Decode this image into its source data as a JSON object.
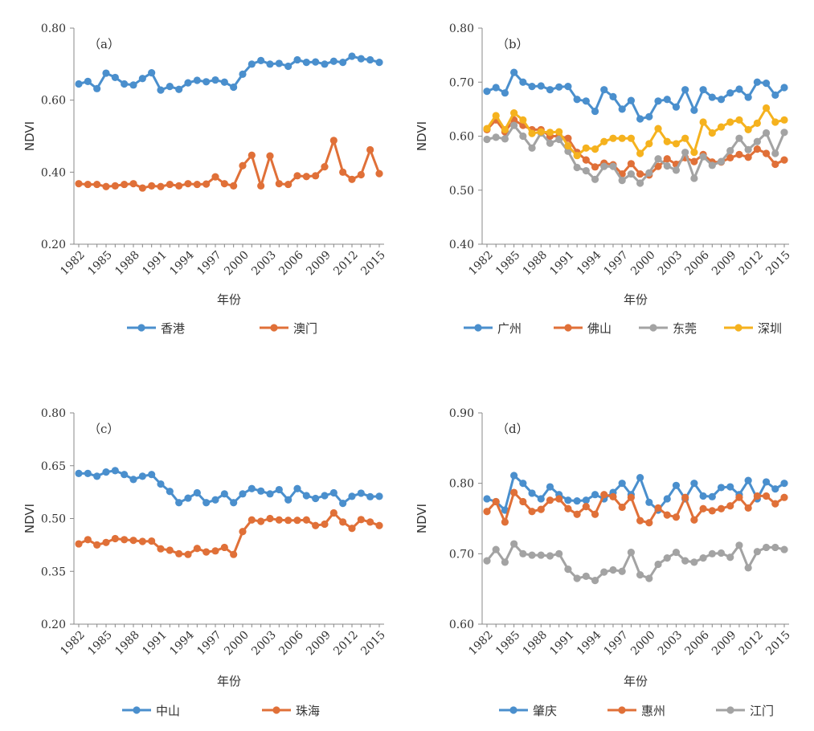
{
  "colors": {
    "blue": "#4a8fcd",
    "orange": "#e07038",
    "gray": "#a3a3a3",
    "yellow": "#f5b21e",
    "axis": "#888888"
  },
  "chart_data": [
    {
      "id": "a",
      "type": "line",
      "label": "（a）",
      "xlabel": "年份",
      "ylabel": "NDVI",
      "ylim": [
        0.2,
        0.8
      ],
      "yticks": [
        0.2,
        0.4,
        0.6,
        0.8
      ],
      "ytick_labels": [
        "0.20",
        "0.40",
        "0.60",
        "0.80"
      ],
      "xticks": [
        1982,
        1985,
        1988,
        1991,
        1994,
        1997,
        2000,
        2003,
        2006,
        2009,
        2012,
        2015
      ],
      "x": [
        1982,
        1983,
        1984,
        1985,
        1986,
        1987,
        1988,
        1989,
        1990,
        1991,
        1992,
        1993,
        1994,
        1995,
        1996,
        1997,
        1998,
        1999,
        2000,
        2001,
        2002,
        2003,
        2004,
        2005,
        2006,
        2007,
        2008,
        2009,
        2010,
        2011,
        2012,
        2013,
        2014,
        2015
      ],
      "series": [
        {
          "name": "香港",
          "color": "#4a8fcd",
          "values": [
            0.645,
            0.652,
            0.632,
            0.675,
            0.663,
            0.645,
            0.642,
            0.66,
            0.676,
            0.628,
            0.638,
            0.63,
            0.648,
            0.655,
            0.651,
            0.656,
            0.65,
            0.636,
            0.672,
            0.7,
            0.71,
            0.7,
            0.702,
            0.694,
            0.712,
            0.705,
            0.706,
            0.7,
            0.708,
            0.705,
            0.722,
            0.715,
            0.712,
            0.705
          ]
        },
        {
          "name": "澳门",
          "color": "#e07038",
          "values": [
            0.368,
            0.366,
            0.366,
            0.36,
            0.362,
            0.366,
            0.368,
            0.356,
            0.362,
            0.36,
            0.366,
            0.362,
            0.368,
            0.366,
            0.367,
            0.387,
            0.368,
            0.362,
            0.418,
            0.447,
            0.362,
            0.445,
            0.368,
            0.366,
            0.39,
            0.388,
            0.39,
            0.415,
            0.488,
            0.4,
            0.38,
            0.393,
            0.462,
            0.396
          ]
        }
      ]
    },
    {
      "id": "b",
      "type": "line",
      "label": "（b）",
      "xlabel": "年份",
      "ylabel": "NDVI",
      "ylim": [
        0.4,
        0.8
      ],
      "yticks": [
        0.4,
        0.5,
        0.6,
        0.7,
        0.8
      ],
      "ytick_labels": [
        "0.40",
        "0.50",
        "0.60",
        "0.70",
        "0.80"
      ],
      "xticks": [
        1982,
        1985,
        1988,
        1991,
        1994,
        1997,
        2000,
        2003,
        2006,
        2009,
        2012,
        2015
      ],
      "x": [
        1982,
        1983,
        1984,
        1985,
        1986,
        1987,
        1988,
        1989,
        1990,
        1991,
        1992,
        1993,
        1994,
        1995,
        1996,
        1997,
        1998,
        1999,
        2000,
        2001,
        2002,
        2003,
        2004,
        2005,
        2006,
        2007,
        2008,
        2009,
        2010,
        2011,
        2012,
        2013,
        2014,
        2015
      ],
      "series": [
        {
          "name": "广州",
          "color": "#4a8fcd",
          "values": [
            0.683,
            0.69,
            0.68,
            0.718,
            0.7,
            0.692,
            0.693,
            0.686,
            0.691,
            0.692,
            0.668,
            0.665,
            0.646,
            0.686,
            0.673,
            0.65,
            0.666,
            0.632,
            0.636,
            0.665,
            0.668,
            0.654,
            0.686,
            0.648,
            0.686,
            0.672,
            0.668,
            0.68,
            0.687,
            0.672,
            0.7,
            0.698,
            0.676,
            0.69
          ]
        },
        {
          "name": "佛山",
          "color": "#e07038",
          "values": [
            0.612,
            0.63,
            0.608,
            0.63,
            0.62,
            0.612,
            0.612,
            0.6,
            0.6,
            0.596,
            0.57,
            0.556,
            0.543,
            0.55,
            0.547,
            0.53,
            0.549,
            0.53,
            0.528,
            0.544,
            0.558,
            0.548,
            0.56,
            0.553,
            0.566,
            0.552,
            0.552,
            0.56,
            0.566,
            0.561,
            0.576,
            0.568,
            0.548,
            0.556
          ]
        },
        {
          "name": "东莞",
          "color": "#a3a3a3",
          "values": [
            0.594,
            0.598,
            0.595,
            0.62,
            0.6,
            0.578,
            0.606,
            0.587,
            0.594,
            0.572,
            0.542,
            0.536,
            0.52,
            0.544,
            0.544,
            0.518,
            0.53,
            0.513,
            0.532,
            0.558,
            0.545,
            0.537,
            0.57,
            0.522,
            0.562,
            0.546,
            0.553,
            0.573,
            0.596,
            0.575,
            0.59,
            0.606,
            0.568,
            0.607
          ]
        },
        {
          "name": "深圳",
          "color": "#f5b21e",
          "values": [
            0.614,
            0.638,
            0.612,
            0.643,
            0.63,
            0.605,
            0.608,
            0.607,
            0.608,
            0.582,
            0.564,
            0.578,
            0.576,
            0.59,
            0.596,
            0.596,
            0.596,
            0.568,
            0.586,
            0.614,
            0.59,
            0.586,
            0.596,
            0.57,
            0.626,
            0.606,
            0.617,
            0.626,
            0.63,
            0.612,
            0.624,
            0.652,
            0.626,
            0.63
          ]
        }
      ]
    },
    {
      "id": "c",
      "type": "line",
      "label": "（c）",
      "xlabel": "年份",
      "ylabel": "NDVI",
      "ylim": [
        0.2,
        0.8
      ],
      "yticks": [
        0.2,
        0.35,
        0.5,
        0.65,
        0.8
      ],
      "ytick_labels": [
        "0.20",
        "0.35",
        "0.50",
        "0.65",
        "0.80"
      ],
      "xticks": [
        1982,
        1985,
        1988,
        1991,
        1994,
        1997,
        2000,
        2003,
        2006,
        2009,
        2012,
        2015
      ],
      "x": [
        1982,
        1983,
        1984,
        1985,
        1986,
        1987,
        1988,
        1989,
        1990,
        1991,
        1992,
        1993,
        1994,
        1995,
        1996,
        1997,
        1998,
        1999,
        2000,
        2001,
        2002,
        2003,
        2004,
        2005,
        2006,
        2007,
        2008,
        2009,
        2010,
        2011,
        2012,
        2013,
        2014,
        2015
      ],
      "series": [
        {
          "name": "中山",
          "color": "#4a8fcd",
          "values": [
            0.628,
            0.628,
            0.62,
            0.632,
            0.636,
            0.625,
            0.611,
            0.62,
            0.625,
            0.598,
            0.577,
            0.545,
            0.558,
            0.573,
            0.545,
            0.553,
            0.57,
            0.545,
            0.57,
            0.585,
            0.578,
            0.57,
            0.582,
            0.553,
            0.585,
            0.565,
            0.557,
            0.565,
            0.573,
            0.543,
            0.563,
            0.572,
            0.562,
            0.563
          ]
        },
        {
          "name": "珠海",
          "color": "#e07038",
          "values": [
            0.428,
            0.44,
            0.425,
            0.432,
            0.443,
            0.44,
            0.438,
            0.435,
            0.436,
            0.414,
            0.41,
            0.4,
            0.398,
            0.415,
            0.405,
            0.408,
            0.418,
            0.398,
            0.463,
            0.496,
            0.492,
            0.5,
            0.496,
            0.495,
            0.495,
            0.496,
            0.48,
            0.484,
            0.516,
            0.49,
            0.472,
            0.497,
            0.49,
            0.48
          ]
        }
      ]
    },
    {
      "id": "d",
      "type": "line",
      "label": "（d）",
      "xlabel": "年份",
      "ylabel": "NDVI",
      "ylim": [
        0.6,
        0.9
      ],
      "yticks": [
        0.6,
        0.7,
        0.8,
        0.9
      ],
      "ytick_labels": [
        "0.60",
        "0.70",
        "0.80",
        "0.90"
      ],
      "xticks": [
        1982,
        1985,
        1988,
        1991,
        1994,
        1997,
        2000,
        2003,
        2006,
        2009,
        2012,
        2015
      ],
      "x": [
        1982,
        1983,
        1984,
        1985,
        1986,
        1987,
        1988,
        1989,
        1990,
        1991,
        1992,
        1993,
        1994,
        1995,
        1996,
        1997,
        1998,
        1999,
        2000,
        2001,
        2002,
        2003,
        2004,
        2005,
        2006,
        2007,
        2008,
        2009,
        2010,
        2011,
        2012,
        2013,
        2014,
        2015
      ],
      "series": [
        {
          "name": "肇庆",
          "color": "#4a8fcd",
          "values": [
            0.778,
            0.774,
            0.762,
            0.811,
            0.8,
            0.786,
            0.778,
            0.795,
            0.784,
            0.776,
            0.775,
            0.776,
            0.784,
            0.778,
            0.787,
            0.8,
            0.784,
            0.808,
            0.773,
            0.762,
            0.778,
            0.797,
            0.778,
            0.8,
            0.782,
            0.781,
            0.794,
            0.795,
            0.784,
            0.804,
            0.778,
            0.802,
            0.792,
            0.8
          ]
        },
        {
          "name": "惠州",
          "color": "#e07038",
          "values": [
            0.76,
            0.774,
            0.745,
            0.787,
            0.774,
            0.76,
            0.763,
            0.776,
            0.778,
            0.764,
            0.756,
            0.767,
            0.756,
            0.784,
            0.781,
            0.766,
            0.78,
            0.747,
            0.744,
            0.765,
            0.755,
            0.752,
            0.78,
            0.748,
            0.764,
            0.761,
            0.764,
            0.768,
            0.78,
            0.765,
            0.782,
            0.782,
            0.771,
            0.78
          ]
        },
        {
          "name": "江门",
          "color": "#a3a3a3",
          "values": [
            0.69,
            0.706,
            0.688,
            0.714,
            0.7,
            0.698,
            0.698,
            0.697,
            0.7,
            0.678,
            0.665,
            0.668,
            0.662,
            0.674,
            0.677,
            0.675,
            0.702,
            0.67,
            0.665,
            0.685,
            0.694,
            0.702,
            0.69,
            0.688,
            0.694,
            0.7,
            0.701,
            0.695,
            0.712,
            0.68,
            0.703,
            0.709,
            0.709,
            0.706
          ]
        }
      ]
    }
  ]
}
